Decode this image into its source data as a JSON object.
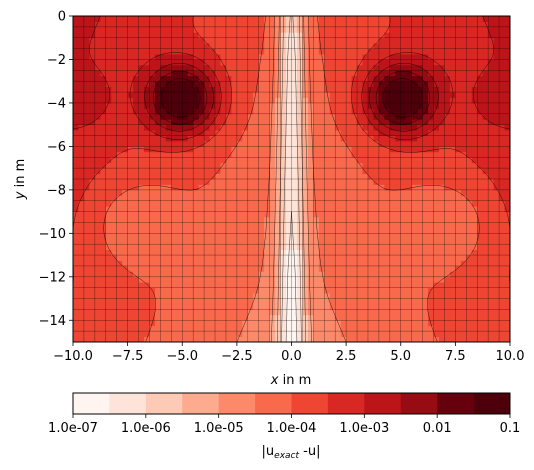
{
  "chart_data": {
    "type": "heatmap",
    "plot_style": "filled-contour with overlaid mesh grid",
    "xlabel_parts": {
      "var": "x",
      "rest": " in m"
    },
    "ylabel_parts": {
      "var": "y",
      "rest": " in m"
    },
    "xlim": [
      -10.0,
      10.0
    ],
    "ylim": [
      -15,
      0
    ],
    "xticks": [
      {
        "value": -10.0,
        "label": "−10.0"
      },
      {
        "value": -7.5,
        "label": "−7.5"
      },
      {
        "value": -5.0,
        "label": "−5.0"
      },
      {
        "value": -2.5,
        "label": "−2.5"
      },
      {
        "value": 0.0,
        "label": "0.0"
      },
      {
        "value": 2.5,
        "label": "2.5"
      },
      {
        "value": 5.0,
        "label": "5.0"
      },
      {
        "value": 7.5,
        "label": "7.5"
      },
      {
        "value": 10.0,
        "label": "10.0"
      }
    ],
    "yticks": [
      {
        "value": 0,
        "label": "0"
      },
      {
        "value": -2,
        "label": "−2"
      },
      {
        "value": -4,
        "label": "−4"
      },
      {
        "value": -6,
        "label": "−6"
      },
      {
        "value": -8,
        "label": "−8"
      },
      {
        "value": -10,
        "label": "−10"
      },
      {
        "value": -12,
        "label": "−12"
      },
      {
        "value": -14,
        "label": "−14"
      }
    ],
    "mesh_cells": {
      "nx": 40,
      "ny": 30
    },
    "features": [
      {
        "kind": "source",
        "x": -5.0,
        "y": -3.8,
        "peak": 0.1
      },
      {
        "kind": "source",
        "x": 5.0,
        "y": -3.8,
        "peak": 0.1
      },
      {
        "kind": "symmetry_line",
        "x": 0.0,
        "value": 1e-07
      }
    ],
    "colorbar": {
      "scale": "log",
      "levels": [
        1e-07,
        3.16e-07,
        1e-06,
        3.16e-06,
        1e-05,
        3.16e-05,
        0.0001,
        0.000316,
        0.001,
        0.00316,
        0.01,
        0.0316,
        0.1
      ],
      "colors": [
        "#fff5f0",
        "#fee4d8",
        "#fdcab5",
        "#fcab8f",
        "#fc8a6a",
        "#f9694c",
        "#ef4533",
        "#d92723",
        "#bb151a",
        "#970b13",
        "#67000d",
        "#4d000a"
      ],
      "ticks": [
        {
          "value": 1e-07,
          "label": "1.0e-07"
        },
        {
          "value": 1e-06,
          "label": "1.0e-06"
        },
        {
          "value": 1e-05,
          "label": "1.0e-05"
        },
        {
          "value": 0.0001,
          "label": "1.0e-04"
        },
        {
          "value": 0.001,
          "label": "1.0e-03"
        },
        {
          "value": 0.01,
          "label": "0.01"
        },
        {
          "value": 0.1,
          "label": "0.1"
        }
      ],
      "label_parts": {
        "pre": "|u",
        "sub": "exact",
        "post": " -u|"
      }
    }
  }
}
